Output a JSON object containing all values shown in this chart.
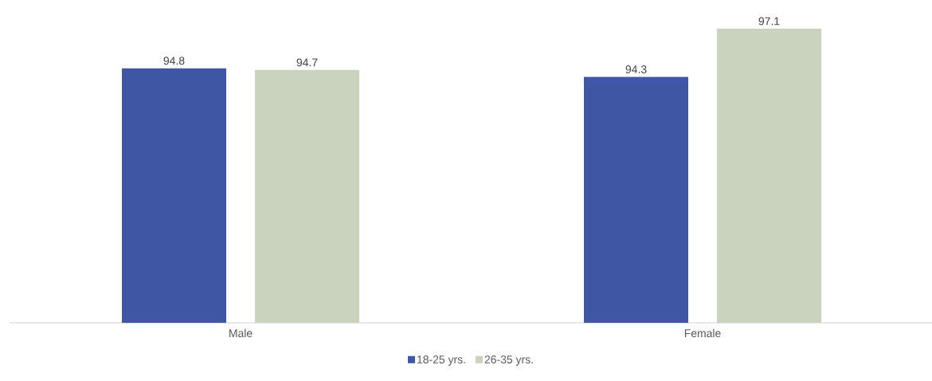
{
  "chart_data": {
    "type": "bar",
    "categories": [
      "Male",
      "Female"
    ],
    "series": [
      {
        "name": "18-25 yrs.",
        "color": "#3f56a5",
        "values": [
          94.8,
          94.3
        ]
      },
      {
        "name": "26-35 yrs.",
        "color": "#c9d3be",
        "values": [
          94.7,
          97.1
        ]
      }
    ],
    "ylim": [
      80,
      97.1
    ],
    "data_labels": true,
    "legend": "bottom"
  }
}
